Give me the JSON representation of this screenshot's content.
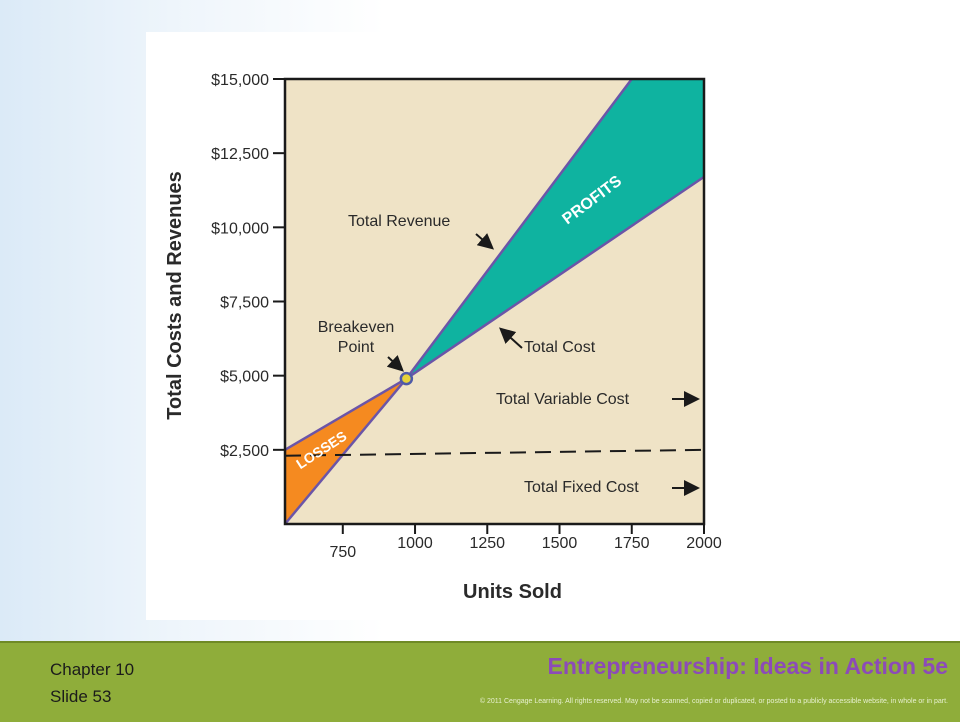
{
  "chart_data": {
    "type": "line",
    "title": "",
    "xlabel": "Units Sold",
    "ylabel": "Total Costs and Revenues",
    "xlim": [
      550,
      2000
    ],
    "ylim": [
      0,
      15000
    ],
    "x_ticks": [
      750,
      1000,
      1250,
      1500,
      1750,
      2000
    ],
    "y_ticks": [
      2500,
      5000,
      7500,
      10000,
      12500,
      15000
    ],
    "y_tick_labels": [
      "$2,500",
      "$5,000",
      "$7,500",
      "$10,000",
      "$12,500",
      "$15,000"
    ],
    "series": [
      {
        "name": "Total Revenue",
        "x": [
          550,
          970,
          1750
        ],
        "y": [
          0,
          4900,
          15000
        ]
      },
      {
        "name": "Total Cost",
        "x": [
          550,
          970,
          2000
        ],
        "y": [
          2500,
          4900,
          11700
        ]
      },
      {
        "name": "Total Fixed Cost",
        "x": [
          550,
          2000
        ],
        "y": [
          2300,
          2500
        ]
      }
    ],
    "regions": {
      "losses": "LOSSES",
      "profits": "PROFITS"
    },
    "breakeven": {
      "label_line1": "Breakeven",
      "label_line2": "Point",
      "x": 970,
      "y": 4900
    },
    "annotations": {
      "total_revenue": "Total Revenue",
      "total_cost": "Total Cost",
      "total_variable_cost": "Total Variable Cost",
      "total_fixed_cost": "Total Fixed Cost"
    },
    "colors": {
      "plot_background": "#efe3c6",
      "profits": "#0fb3a0",
      "losses": "#f58a20",
      "lines": "#6b55a8",
      "breakeven_point": "#e6d23a",
      "text": "#2a2a2a"
    }
  },
  "footer": {
    "chapter": "Chapter 10",
    "slide": "Slide 53",
    "title": "Entrepreneurship: Ideas in Action 5e",
    "copyright": "© 2011 Cengage Learning. All rights reserved. May not be scanned, copied or duplicated, or posted to a publicly accessible website, in whole or in part."
  }
}
